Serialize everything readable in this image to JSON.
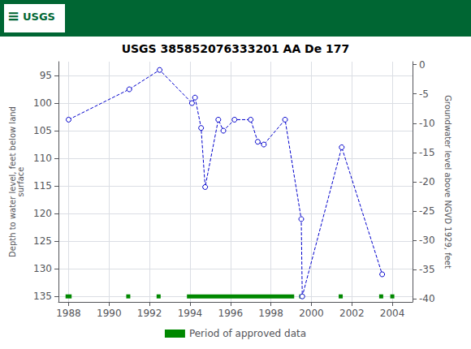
{
  "chart_data": {
    "type": "line",
    "title": "USGS 385852076333201 AA De 177",
    "header": {
      "symbol": "≡",
      "text": "USGS",
      "color": "#006633"
    },
    "x": [
      1988.0,
      1991.0,
      1992.5,
      1994.1,
      1994.25,
      1994.55,
      1994.75,
      1995.4,
      1995.65,
      1996.2,
      1997.0,
      1997.35,
      1997.65,
      1998.7,
      1999.5,
      1999.55,
      2001.5,
      2003.5
    ],
    "values": [
      103.0,
      97.5,
      94.0,
      100.0,
      99.0,
      104.5,
      115.2,
      103.0,
      105.0,
      103.0,
      103.0,
      107.0,
      107.5,
      103.0,
      121.0,
      135.0,
      108.0,
      131.0
    ],
    "color": "#0000cc",
    "marker": "circle",
    "line_style": "dashed",
    "xlim": [
      1987.5,
      2005.0
    ],
    "xticks": [
      1988,
      1990,
      1992,
      1994,
      1996,
      1998,
      2000,
      2002,
      2004
    ],
    "ylabel": "Depth to water level, feet below land\nsurface",
    "ylim": [
      136,
      92.5
    ],
    "yticks": [
      95,
      100,
      105,
      110,
      115,
      120,
      125,
      130,
      135
    ],
    "y2label": "Groundwater level above NGVD 1929, feet",
    "y2lim": [
      -40.5,
      0.5
    ],
    "y2ticks": [
      0,
      -5,
      -10,
      -15,
      -20,
      -25,
      -30,
      -35,
      -40
    ],
    "grid": true,
    "legend": "bottom",
    "approved_periods": {
      "name": "Period of approved data",
      "color": "#008800",
      "depth": 135,
      "segments": [
        [
          1987.85,
          1988.15
        ],
        [
          1990.85,
          1991.05
        ],
        [
          1992.35,
          1992.55
        ],
        [
          1993.85,
          1999.15
        ],
        [
          1999.4,
          1999.65
        ],
        [
          2001.35,
          2001.55
        ],
        [
          2003.35,
          2003.55
        ],
        [
          2003.9,
          2004.1
        ]
      ]
    }
  }
}
